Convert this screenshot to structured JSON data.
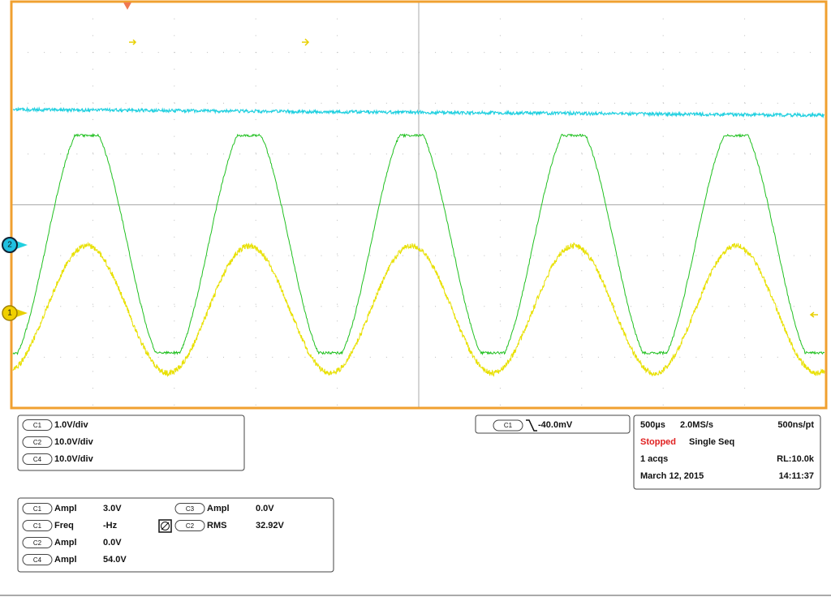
{
  "markers": [
    "2",
    "1"
  ],
  "channel_scales": [
    {
      "channel": "C1",
      "scale": "1.0V/div"
    },
    {
      "channel": "C2",
      "scale": "10.0V/div"
    },
    {
      "channel": "C4",
      "scale": "10.0V/div"
    }
  ],
  "trigger": {
    "channel": "C1",
    "level": "-40.0mV"
  },
  "acquisition": {
    "time_scale": "500µs",
    "sample_rate": "2.0MS/s",
    "resolution": "500ns/pt",
    "state": "Stopped",
    "mode": "Single Seq",
    "acqs": "1 acqs",
    "record_length": "RL:10.0k",
    "date": "March 12, 2015",
    "time": "14:11:37"
  },
  "measurements": [
    {
      "channel": "C1",
      "name": "Ampl",
      "value": "3.0V"
    },
    {
      "channel": "C1",
      "name": "Freq",
      "value": "-Hz"
    },
    {
      "channel": "C2",
      "name": "Ampl",
      "value": "0.0V"
    },
    {
      "channel": "C4",
      "name": "Ampl",
      "value": "54.0V"
    },
    {
      "channel": "C3",
      "name": "Ampl",
      "value": "0.0V"
    },
    {
      "channel": "C2",
      "name": "RMS",
      "value": "32.92V"
    }
  ]
}
